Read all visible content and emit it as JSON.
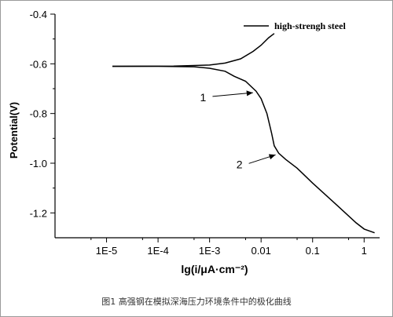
{
  "chart_data": {
    "type": "line",
    "title": "",
    "xlabel": "lg(i/μA·cm⁻²)",
    "ylabel": "Potential(V)",
    "xscale": "log",
    "xlim": [
      1e-06,
      2
    ],
    "ylim": [
      -1.3,
      -0.4
    ],
    "x_ticks": [
      1e-05,
      0.0001,
      0.001,
      0.01,
      0.1,
      1
    ],
    "x_tick_labels": [
      "1E-5",
      "1E-4",
      "1E-3",
      "0.01",
      "0.1",
      "1"
    ],
    "y_ticks": [
      -0.4,
      -0.6,
      -0.8,
      -1.0,
      -1.2
    ],
    "y_tick_labels": [
      "-0.4",
      "-0.6",
      "-0.8",
      "-1.0",
      "-1.2"
    ],
    "grid": false,
    "legend": {
      "position": "top-right",
      "entries": [
        "high-strengh steel"
      ]
    },
    "series": [
      {
        "name": "high-strengh steel",
        "points": [
          [
            1.3e-05,
            -0.61
          ],
          [
            0.0001,
            -0.61
          ],
          [
            0.0005,
            -0.612
          ],
          [
            0.001,
            -0.618
          ],
          [
            0.002,
            -0.63
          ],
          [
            0.003,
            -0.65
          ],
          [
            0.005,
            -0.67
          ],
          [
            0.008,
            -0.71
          ],
          [
            0.01,
            -0.74
          ],
          [
            0.013,
            -0.8
          ],
          [
            0.016,
            -0.88
          ],
          [
            0.018,
            -0.93
          ],
          [
            0.022,
            -0.96
          ],
          [
            0.03,
            -0.985
          ],
          [
            0.05,
            -1.02
          ],
          [
            0.1,
            -1.08
          ],
          [
            0.3,
            -1.17
          ],
          [
            0.7,
            -1.24
          ],
          [
            1.0,
            -1.265
          ],
          [
            1.6,
            -1.28
          ]
        ]
      },
      {
        "name": "",
        "points": [
          [
            1.3e-05,
            -0.61
          ],
          [
            0.0002,
            -0.609
          ],
          [
            0.001,
            -0.605
          ],
          [
            0.002,
            -0.597
          ],
          [
            0.004,
            -0.58
          ],
          [
            0.007,
            -0.55
          ],
          [
            0.01,
            -0.525
          ],
          [
            0.014,
            -0.495
          ],
          [
            0.018,
            -0.478
          ]
        ]
      }
    ],
    "annotations": [
      {
        "label": "1",
        "point": [
          0.008,
          -0.71
        ],
        "text_at": [
          0.00075,
          -0.75
        ]
      },
      {
        "label": "2",
        "point": [
          0.022,
          -0.96
        ],
        "text_at": [
          0.0038,
          -1.02
        ]
      }
    ]
  },
  "caption": "图1 高强钢在模拟深海压力环境条件中的极化曲线"
}
